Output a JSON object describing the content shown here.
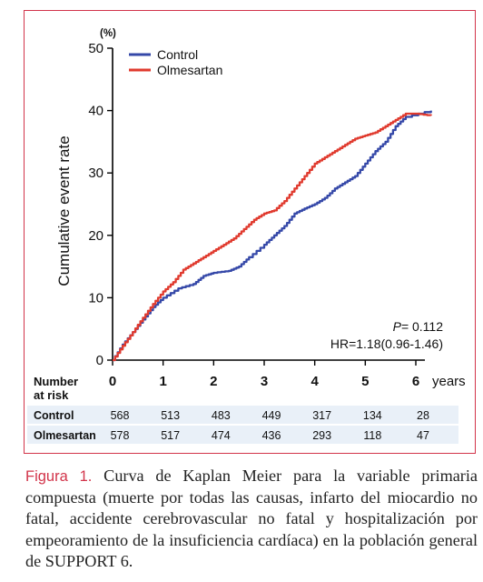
{
  "chart_data": {
    "type": "line",
    "ylabel": "Cumulative event rate",
    "yunit": "(%)",
    "xunit": "years",
    "ylim": [
      0,
      50
    ],
    "xlim": [
      0,
      6.5
    ],
    "yticks": [
      "0",
      "10",
      "20",
      "30",
      "40",
      "50"
    ],
    "xticks": [
      "0",
      "1",
      "2",
      "3",
      "4",
      "5",
      "6"
    ],
    "legend_position": "top-left",
    "series": [
      {
        "name": "Control",
        "color": "#3548a8",
        "points": [
          [
            0,
            0
          ],
          [
            0.2,
            2.5
          ],
          [
            0.4,
            4.5
          ],
          [
            0.6,
            6.5
          ],
          [
            0.8,
            8.5
          ],
          [
            1.0,
            10
          ],
          [
            1.3,
            11.5
          ],
          [
            1.6,
            12.2
          ],
          [
            1.8,
            13.5
          ],
          [
            2.0,
            14
          ],
          [
            2.3,
            14.3
          ],
          [
            2.5,
            15
          ],
          [
            2.7,
            16.5
          ],
          [
            3.0,
            18.5
          ],
          [
            3.2,
            20
          ],
          [
            3.4,
            21.5
          ],
          [
            3.6,
            23.5
          ],
          [
            3.8,
            24.3
          ],
          [
            4.0,
            25
          ],
          [
            4.2,
            26
          ],
          [
            4.4,
            27.5
          ],
          [
            4.6,
            28.5
          ],
          [
            4.8,
            29.5
          ],
          [
            5.0,
            31.5
          ],
          [
            5.2,
            33.5
          ],
          [
            5.4,
            35
          ],
          [
            5.6,
            37.5
          ],
          [
            5.8,
            39
          ],
          [
            6.3,
            40
          ]
        ]
      },
      {
        "name": "Olmesartan",
        "color": "#e03a2e",
        "points": [
          [
            0,
            0
          ],
          [
            0.2,
            2.3
          ],
          [
            0.4,
            4.5
          ],
          [
            0.6,
            6.8
          ],
          [
            0.8,
            9
          ],
          [
            1.0,
            11
          ],
          [
            1.2,
            12.5
          ],
          [
            1.4,
            14.5
          ],
          [
            1.6,
            15.5
          ],
          [
            1.8,
            16.5
          ],
          [
            2.0,
            17.5
          ],
          [
            2.2,
            18.5
          ],
          [
            2.4,
            19.5
          ],
          [
            2.6,
            21
          ],
          [
            2.8,
            22.5
          ],
          [
            3.0,
            23.5
          ],
          [
            3.2,
            24
          ],
          [
            3.4,
            25.5
          ],
          [
            3.6,
            27.5
          ],
          [
            3.8,
            29.5
          ],
          [
            4.0,
            31.5
          ],
          [
            4.2,
            32.5
          ],
          [
            4.4,
            33.5
          ],
          [
            4.6,
            34.5
          ],
          [
            4.8,
            35.5
          ],
          [
            5.0,
            36
          ],
          [
            5.2,
            36.5
          ],
          [
            5.4,
            37.5
          ],
          [
            5.6,
            38.5
          ],
          [
            5.8,
            39.5
          ],
          [
            6.0,
            39.5
          ],
          [
            6.3,
            39.2
          ]
        ]
      }
    ],
    "annotation": {
      "p_prefix": "P",
      "p_suffix": "= 0.112",
      "hr": "HR=1.18(0.96-1.46)"
    },
    "risk_table": {
      "header": [
        "Number",
        "at risk"
      ],
      "rows": [
        {
          "label": "Control",
          "values": [
            "568",
            "513",
            "483",
            "449",
            "317",
            "134",
            "28"
          ]
        },
        {
          "label": "Olmesartan",
          "values": [
            "578",
            "517",
            "474",
            "436",
            "293",
            "118",
            "47"
          ]
        }
      ]
    }
  },
  "caption": {
    "lead": "Figura 1.",
    "text": " Curva de Kaplan Meier para la variable primaria compuesta (muerte por todas las causas, infarto del miocardio no fatal, accidente cerebrovascular no fatal y hospitalización por empeoramiento de la insuficiencia cardíaca) en la población general de SUPPORT 6."
  }
}
